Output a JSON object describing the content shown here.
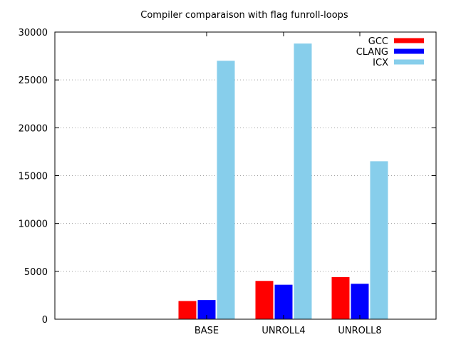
{
  "chart_data": {
    "type": "bar",
    "title": "Compiler comparaison with flag funroll-loops",
    "xlabel": "",
    "ylabel": "",
    "categories": [
      "BASE",
      "UNROLL4",
      "UNROLL8"
    ],
    "series": [
      {
        "name": "GCC",
        "color": "#ff0000",
        "values": [
          1900,
          4000,
          4400
        ]
      },
      {
        "name": "CLANG",
        "color": "#0000ff",
        "values": [
          2000,
          3600,
          3700
        ]
      },
      {
        "name": "ICX",
        "color": "#87ceeb",
        "values": [
          27000,
          28800,
          16500
        ]
      }
    ],
    "ylim": [
      0,
      30000
    ],
    "yticks": [
      "0",
      "5000",
      "10000",
      "15000",
      "20000",
      "25000",
      "30000"
    ],
    "ytick_values": [
      0,
      5000,
      10000,
      15000,
      20000,
      25000,
      30000
    ],
    "grid": true,
    "legend_position": "top-right"
  }
}
